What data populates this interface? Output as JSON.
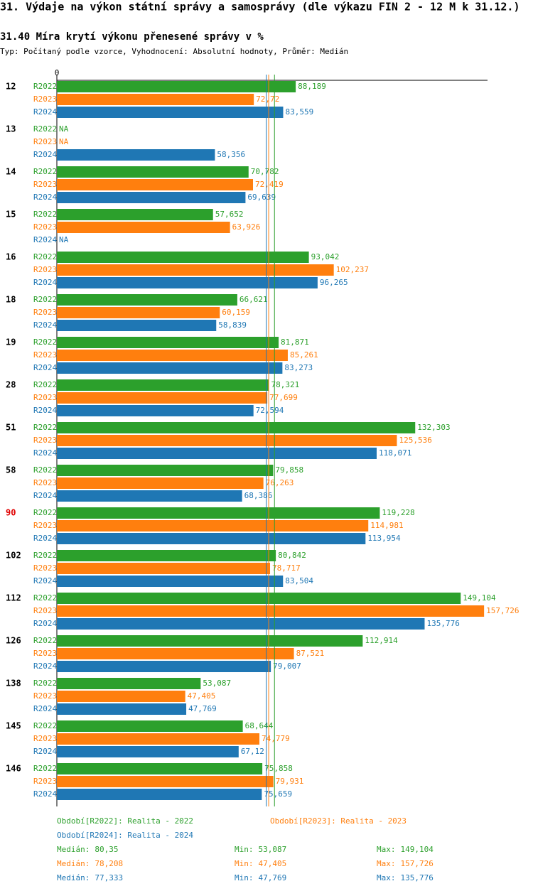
{
  "chart_data": {
    "type": "grouped-hbar",
    "title": "31. Výdaje na výkon státní správy a samosprávy (dle výkazu FIN 2 - 12 M k 31.12.)",
    "subtitle": "31.40 Míra krytí výkonu přenesené správy v %",
    "note": "Typ: Počítaný podle vzorce, Vyhodnocení: Absolutní hodnoty, Průměr: Medián",
    "categories": [
      "12",
      "13",
      "14",
      "15",
      "16",
      "18",
      "19",
      "28",
      "51",
      "58",
      "90",
      "102",
      "112",
      "126",
      "138",
      "145",
      "146"
    ],
    "highlight": [
      10
    ],
    "highlight_color": "#e00000",
    "xlim": [
      0,
      159
    ],
    "xticks": [
      0
    ],
    "stat_names": [
      "Medián:",
      "Min:",
      "Max:"
    ],
    "series": [
      {
        "name": "R2022",
        "color": "#2ca02c",
        "legend_label": "Období[R2022]: Realita - 2022",
        "values": [
          88.189,
          null,
          70.782,
          57.652,
          93.042,
          66.621,
          81.871,
          78.321,
          132.303,
          79.858,
          119.228,
          80.842,
          149.104,
          112.914,
          53.087,
          68.644,
          75.858
        ],
        "value_labels": [
          "88,189",
          "NA",
          "70,782",
          "57,652",
          "93,042",
          "66,621",
          "81,871",
          "78,321",
          "132,303",
          "79,858",
          "119,228",
          "80,842",
          "149,104",
          "112,914",
          "53,087",
          "68,644",
          "75,858"
        ],
        "median": 80.35,
        "median_label": "80,35",
        "min": 53.087,
        "min_label": "53,087",
        "max": 149.104,
        "max_label": "149,104"
      },
      {
        "name": "R2023",
        "color": "#ff7f0e",
        "legend_label": "Období[R2023]: Realita - 2023",
        "values": [
          72.72,
          null,
          72.419,
          63.926,
          102.237,
          60.159,
          85.261,
          77.699,
          125.536,
          76.263,
          114.981,
          78.717,
          157.726,
          87.521,
          47.405,
          74.779,
          79.931
        ],
        "value_labels": [
          "72,72",
          "NA",
          "72,419",
          "63,926",
          "102,237",
          "60,159",
          "85,261",
          "77,699",
          "125,536",
          "76,263",
          "114,981",
          "78,717",
          "157,726",
          "87,521",
          "47,405",
          "74,779",
          "79,931"
        ],
        "median": 78.208,
        "median_label": "78,208",
        "min": 47.405,
        "min_label": "47,405",
        "max": 157.726,
        "max_label": "157,726"
      },
      {
        "name": "R2024",
        "color": "#1f77b4",
        "legend_label": "Období[R2024]: Realita - 2024",
        "values": [
          83.559,
          58.356,
          69.639,
          null,
          96.265,
          58.839,
          83.273,
          72.594,
          118.071,
          68.386,
          113.954,
          83.504,
          135.776,
          79.007,
          47.769,
          67.12,
          75.659
        ],
        "value_labels": [
          "83,559",
          "58,356",
          "69,639",
          "NA",
          "96,265",
          "58,839",
          "83,273",
          "72,594",
          "118,071",
          "68,386",
          "113,954",
          "83,504",
          "135,776",
          "79,007",
          "47,769",
          "67,12",
          "75,659"
        ],
        "median": 77.333,
        "median_label": "77,333",
        "min": 47.769,
        "min_label": "47,769",
        "max": 135.776,
        "max_label": "135,776"
      }
    ]
  }
}
